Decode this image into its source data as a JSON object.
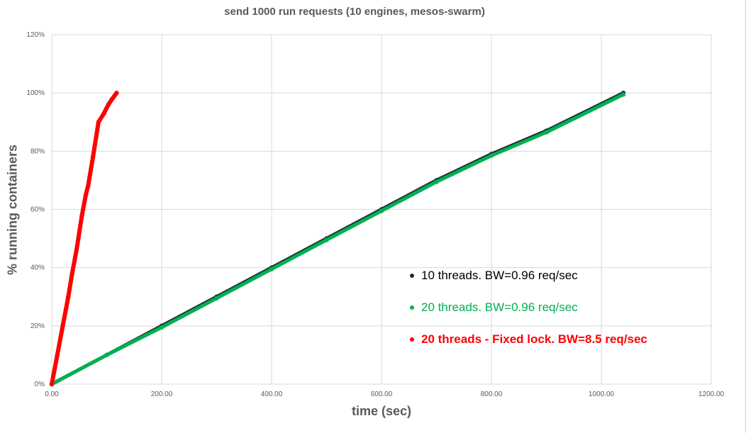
{
  "chart_data": {
    "type": "scatter",
    "title": "send 1000 run requests (10 engines, mesos-swarm)",
    "xlabel": "time (sec)",
    "ylabel": "% running containers",
    "xlim": [
      0,
      1200
    ],
    "ylim": [
      0,
      1.2
    ],
    "x_ticks": [
      0,
      200,
      400,
      600,
      800,
      1000,
      1200
    ],
    "x_tick_labels": [
      "0.00",
      "200.00",
      "400.00",
      "600.00",
      "800.00",
      "1000.00",
      "1200.00"
    ],
    "y_ticks": [
      0,
      0.2,
      0.4,
      0.6,
      0.8,
      1.0,
      1.2
    ],
    "y_tick_labels": [
      "0%",
      "20%",
      "40%",
      "60%",
      "80%",
      "100%",
      "120%"
    ],
    "grid": true,
    "legend_position": "right-middle",
    "series": [
      {
        "name": "10 threads.  BW=0.96 req/sec",
        "color": "#1f2a3a",
        "bold": false,
        "points": [
          [
            0,
            0
          ],
          [
            100,
            0.1
          ],
          [
            200,
            0.2
          ],
          [
            300,
            0.3
          ],
          [
            400,
            0.4
          ],
          [
            500,
            0.5
          ],
          [
            600,
            0.6
          ],
          [
            700,
            0.7
          ],
          [
            800,
            0.79
          ],
          [
            900,
            0.87
          ],
          [
            1040,
            1.0
          ]
        ]
      },
      {
        "name": "20 threads. BW=0.96 req/sec",
        "color": "#00b050",
        "bold": false,
        "points": [
          [
            0,
            0
          ],
          [
            100,
            0.1
          ],
          [
            200,
            0.195
          ],
          [
            300,
            0.295
          ],
          [
            400,
            0.395
          ],
          [
            500,
            0.495
          ],
          [
            600,
            0.595
          ],
          [
            700,
            0.695
          ],
          [
            800,
            0.785
          ],
          [
            900,
            0.865
          ],
          [
            1040,
            0.995
          ]
        ]
      },
      {
        "name": "20 threads - Fixed lock.  BW=8.5 req/sec",
        "color": "#ff0000",
        "bold": true,
        "points": [
          [
            0,
            0
          ],
          [
            10,
            0.1
          ],
          [
            20,
            0.2
          ],
          [
            30,
            0.3
          ],
          [
            37,
            0.38
          ],
          [
            45,
            0.46
          ],
          [
            55,
            0.58
          ],
          [
            62,
            0.65
          ],
          [
            66,
            0.68
          ],
          [
            75,
            0.78
          ],
          [
            85,
            0.9
          ],
          [
            95,
            0.93
          ],
          [
            103,
            0.96
          ],
          [
            110,
            0.98
          ],
          [
            118,
            1.0
          ]
        ]
      }
    ]
  }
}
